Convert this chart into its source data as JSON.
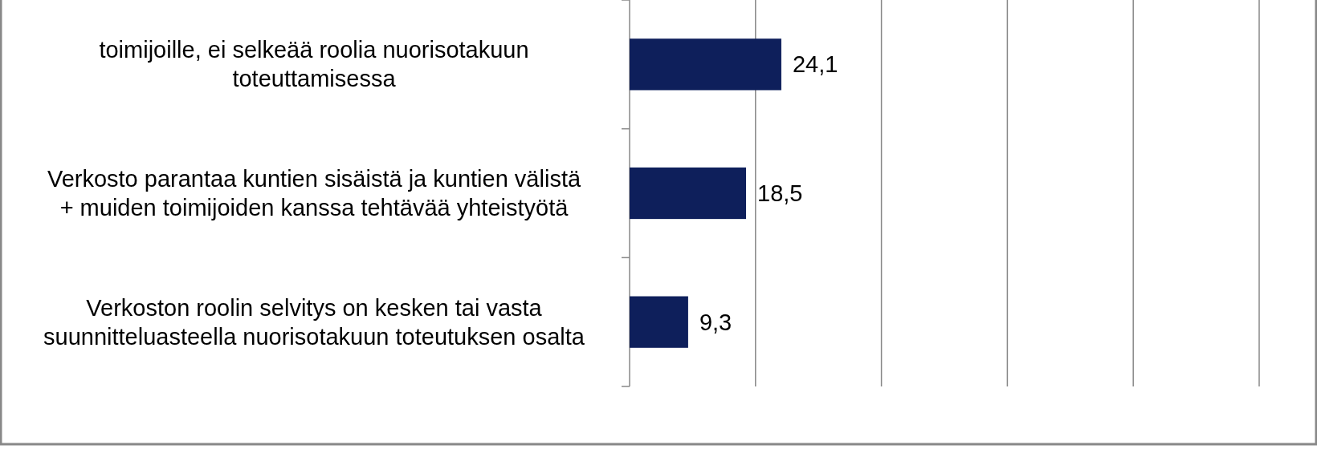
{
  "chart_data": {
    "type": "bar",
    "orientation": "horizontal",
    "categories": [
      "toimijoille, ei selkeää roolia nuorisotakuun toteuttamisessa",
      "Verkosto parantaa kuntien sisäistä ja kuntien välistä + muiden toimijoiden kanssa tehtävää yhteistyötä",
      "Verkoston roolin selvitys on kesken tai vasta suunnitteluasteella nuorisotakuun toteutuksen osalta"
    ],
    "values": [
      24.1,
      18.5,
      9.3
    ],
    "value_labels": [
      "24,1",
      "18,5",
      "9,3"
    ],
    "color": "#0e1f5b",
    "xlim": [
      0,
      100
    ],
    "xticks": [
      {
        "value": 0,
        "label": null
      },
      {
        "value": 20,
        "label": null
      },
      {
        "value": 40,
        "label": null
      },
      {
        "value": 60,
        "label": null
      },
      {
        "value": 80,
        "label": null
      },
      {
        "value": 100,
        "label": null
      }
    ],
    "grid": "x"
  }
}
